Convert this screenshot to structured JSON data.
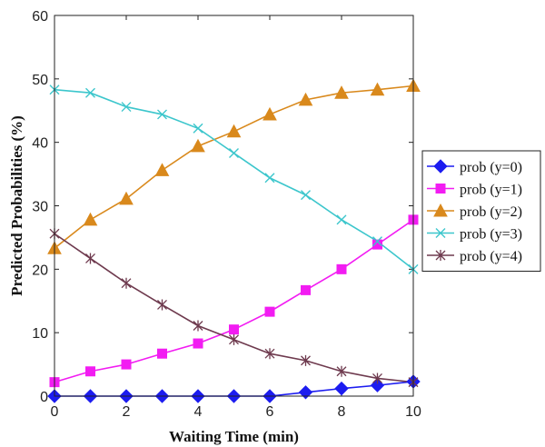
{
  "chart_data": {
    "type": "line",
    "xlabel": "Waiting Time (min)",
    "ylabel": "Predicted Probabilities (%)",
    "xlim": [
      0,
      10
    ],
    "ylim": [
      0,
      60
    ],
    "xticks": [
      0,
      2,
      4,
      6,
      8,
      10
    ],
    "yticks": [
      0,
      10,
      20,
      30,
      40,
      50,
      60
    ],
    "grid": false,
    "legend_position": "right",
    "x": [
      0,
      1,
      2,
      3,
      4,
      5,
      6,
      7,
      8,
      9,
      10
    ],
    "series": [
      {
        "name": "prob (y=0)",
        "color": "#1c1cf0",
        "marker": "diamond",
        "values": [
          0.0,
          0.0,
          0.0,
          0.0,
          0.0,
          0.0,
          0.0,
          0.6,
          1.2,
          1.7,
          2.3
        ]
      },
      {
        "name": "prob (y=1)",
        "color": "#f21cf2",
        "marker": "square",
        "values": [
          2.2,
          3.9,
          5.0,
          6.7,
          8.3,
          10.5,
          13.3,
          16.7,
          20.0,
          23.9,
          27.8
        ]
      },
      {
        "name": "prob (y=2)",
        "color": "#d9891c",
        "marker": "triangle",
        "values": [
          23.3,
          27.8,
          31.1,
          35.6,
          39.4,
          41.7,
          44.4,
          46.7,
          47.8,
          48.3,
          48.9
        ]
      },
      {
        "name": "prob (y=3)",
        "color": "#3cc6cc",
        "marker": "x",
        "values": [
          48.3,
          47.8,
          45.6,
          44.4,
          42.2,
          38.3,
          34.4,
          31.7,
          27.8,
          24.4,
          20.0
        ]
      },
      {
        "name": "prob (y=4)",
        "color": "#6e3a4e",
        "marker": "star",
        "values": [
          25.6,
          21.7,
          17.8,
          14.4,
          11.1,
          8.9,
          6.7,
          5.6,
          3.9,
          2.8,
          2.2
        ]
      }
    ]
  }
}
